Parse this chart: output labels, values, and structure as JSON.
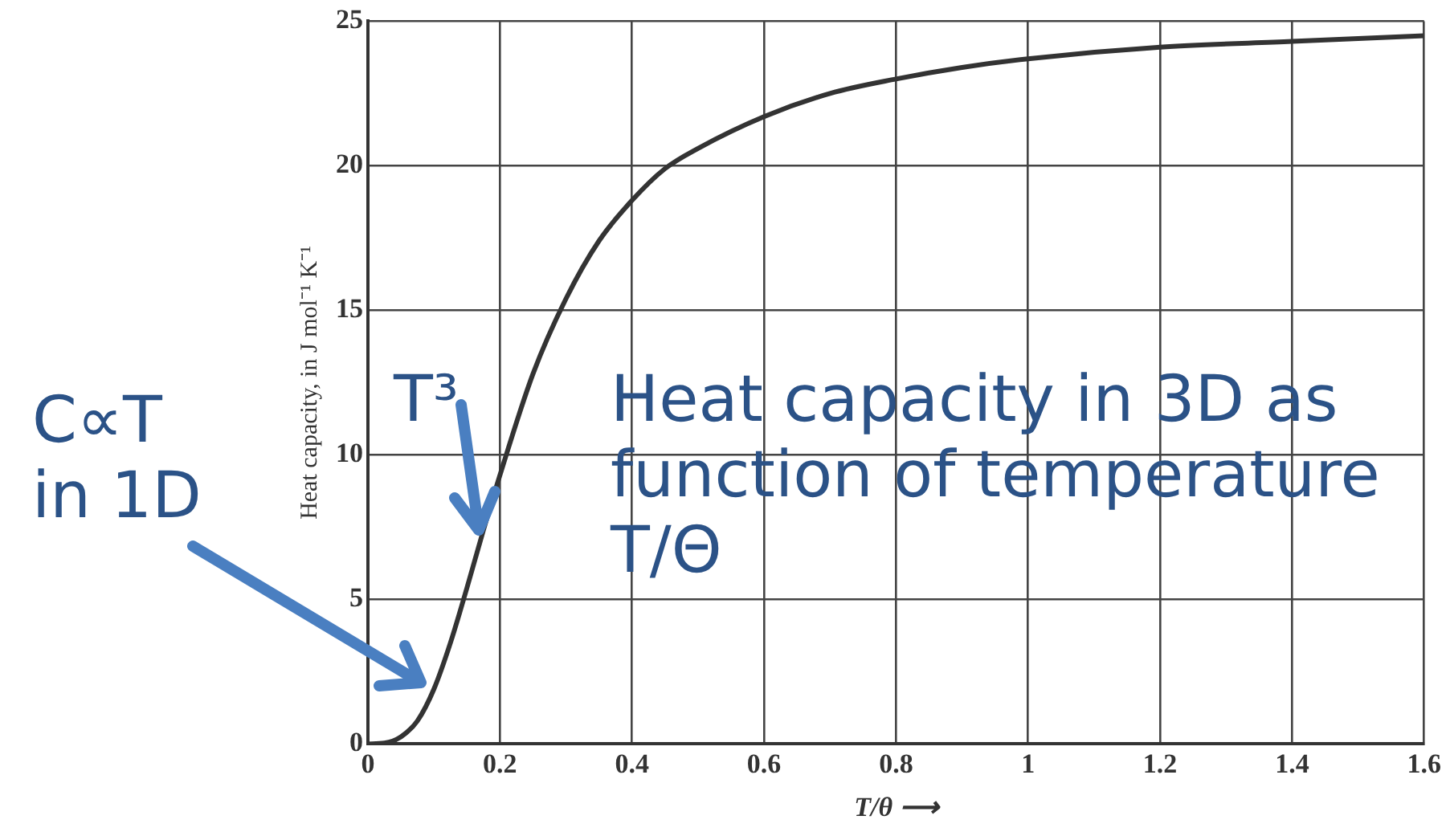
{
  "chart_data": {
    "type": "line",
    "xlabel": "T/θ ⟶",
    "ylabel": "Heat capacity, in J mol⁻¹ K⁻¹",
    "x": [
      0,
      0.025,
      0.05,
      0.075,
      0.1,
      0.125,
      0.15,
      0.175,
      0.2,
      0.25,
      0.3,
      0.35,
      0.4,
      0.45,
      0.5,
      0.6,
      0.7,
      0.8,
      0.9,
      1.0,
      1.2,
      1.4,
      1.6
    ],
    "series": [
      {
        "color": "#333333",
        "values": [
          0,
          0.03,
          0.25,
          0.8,
          1.9,
          3.5,
          5.4,
          7.4,
          9.3,
          12.8,
          15.4,
          17.4,
          18.8,
          19.9,
          20.6,
          21.7,
          22.5,
          23.0,
          23.4,
          23.7,
          24.1,
          24.3,
          24.5
        ]
      }
    ],
    "xlim": [
      0,
      1.6
    ],
    "xticks": [
      0,
      0.2,
      0.4,
      0.6,
      0.8,
      1.0,
      1.2,
      1.4,
      1.6
    ],
    "ylim": [
      0,
      25
    ],
    "yticks": [
      0,
      5,
      10,
      15,
      20,
      25
    ],
    "grid": true,
    "legend": false,
    "marker": "none",
    "line_style": "solid",
    "annotations": [
      "C∝T in 1D",
      "T³",
      "Heat capacity in 3D as function of temperature T/Θ"
    ]
  }
}
